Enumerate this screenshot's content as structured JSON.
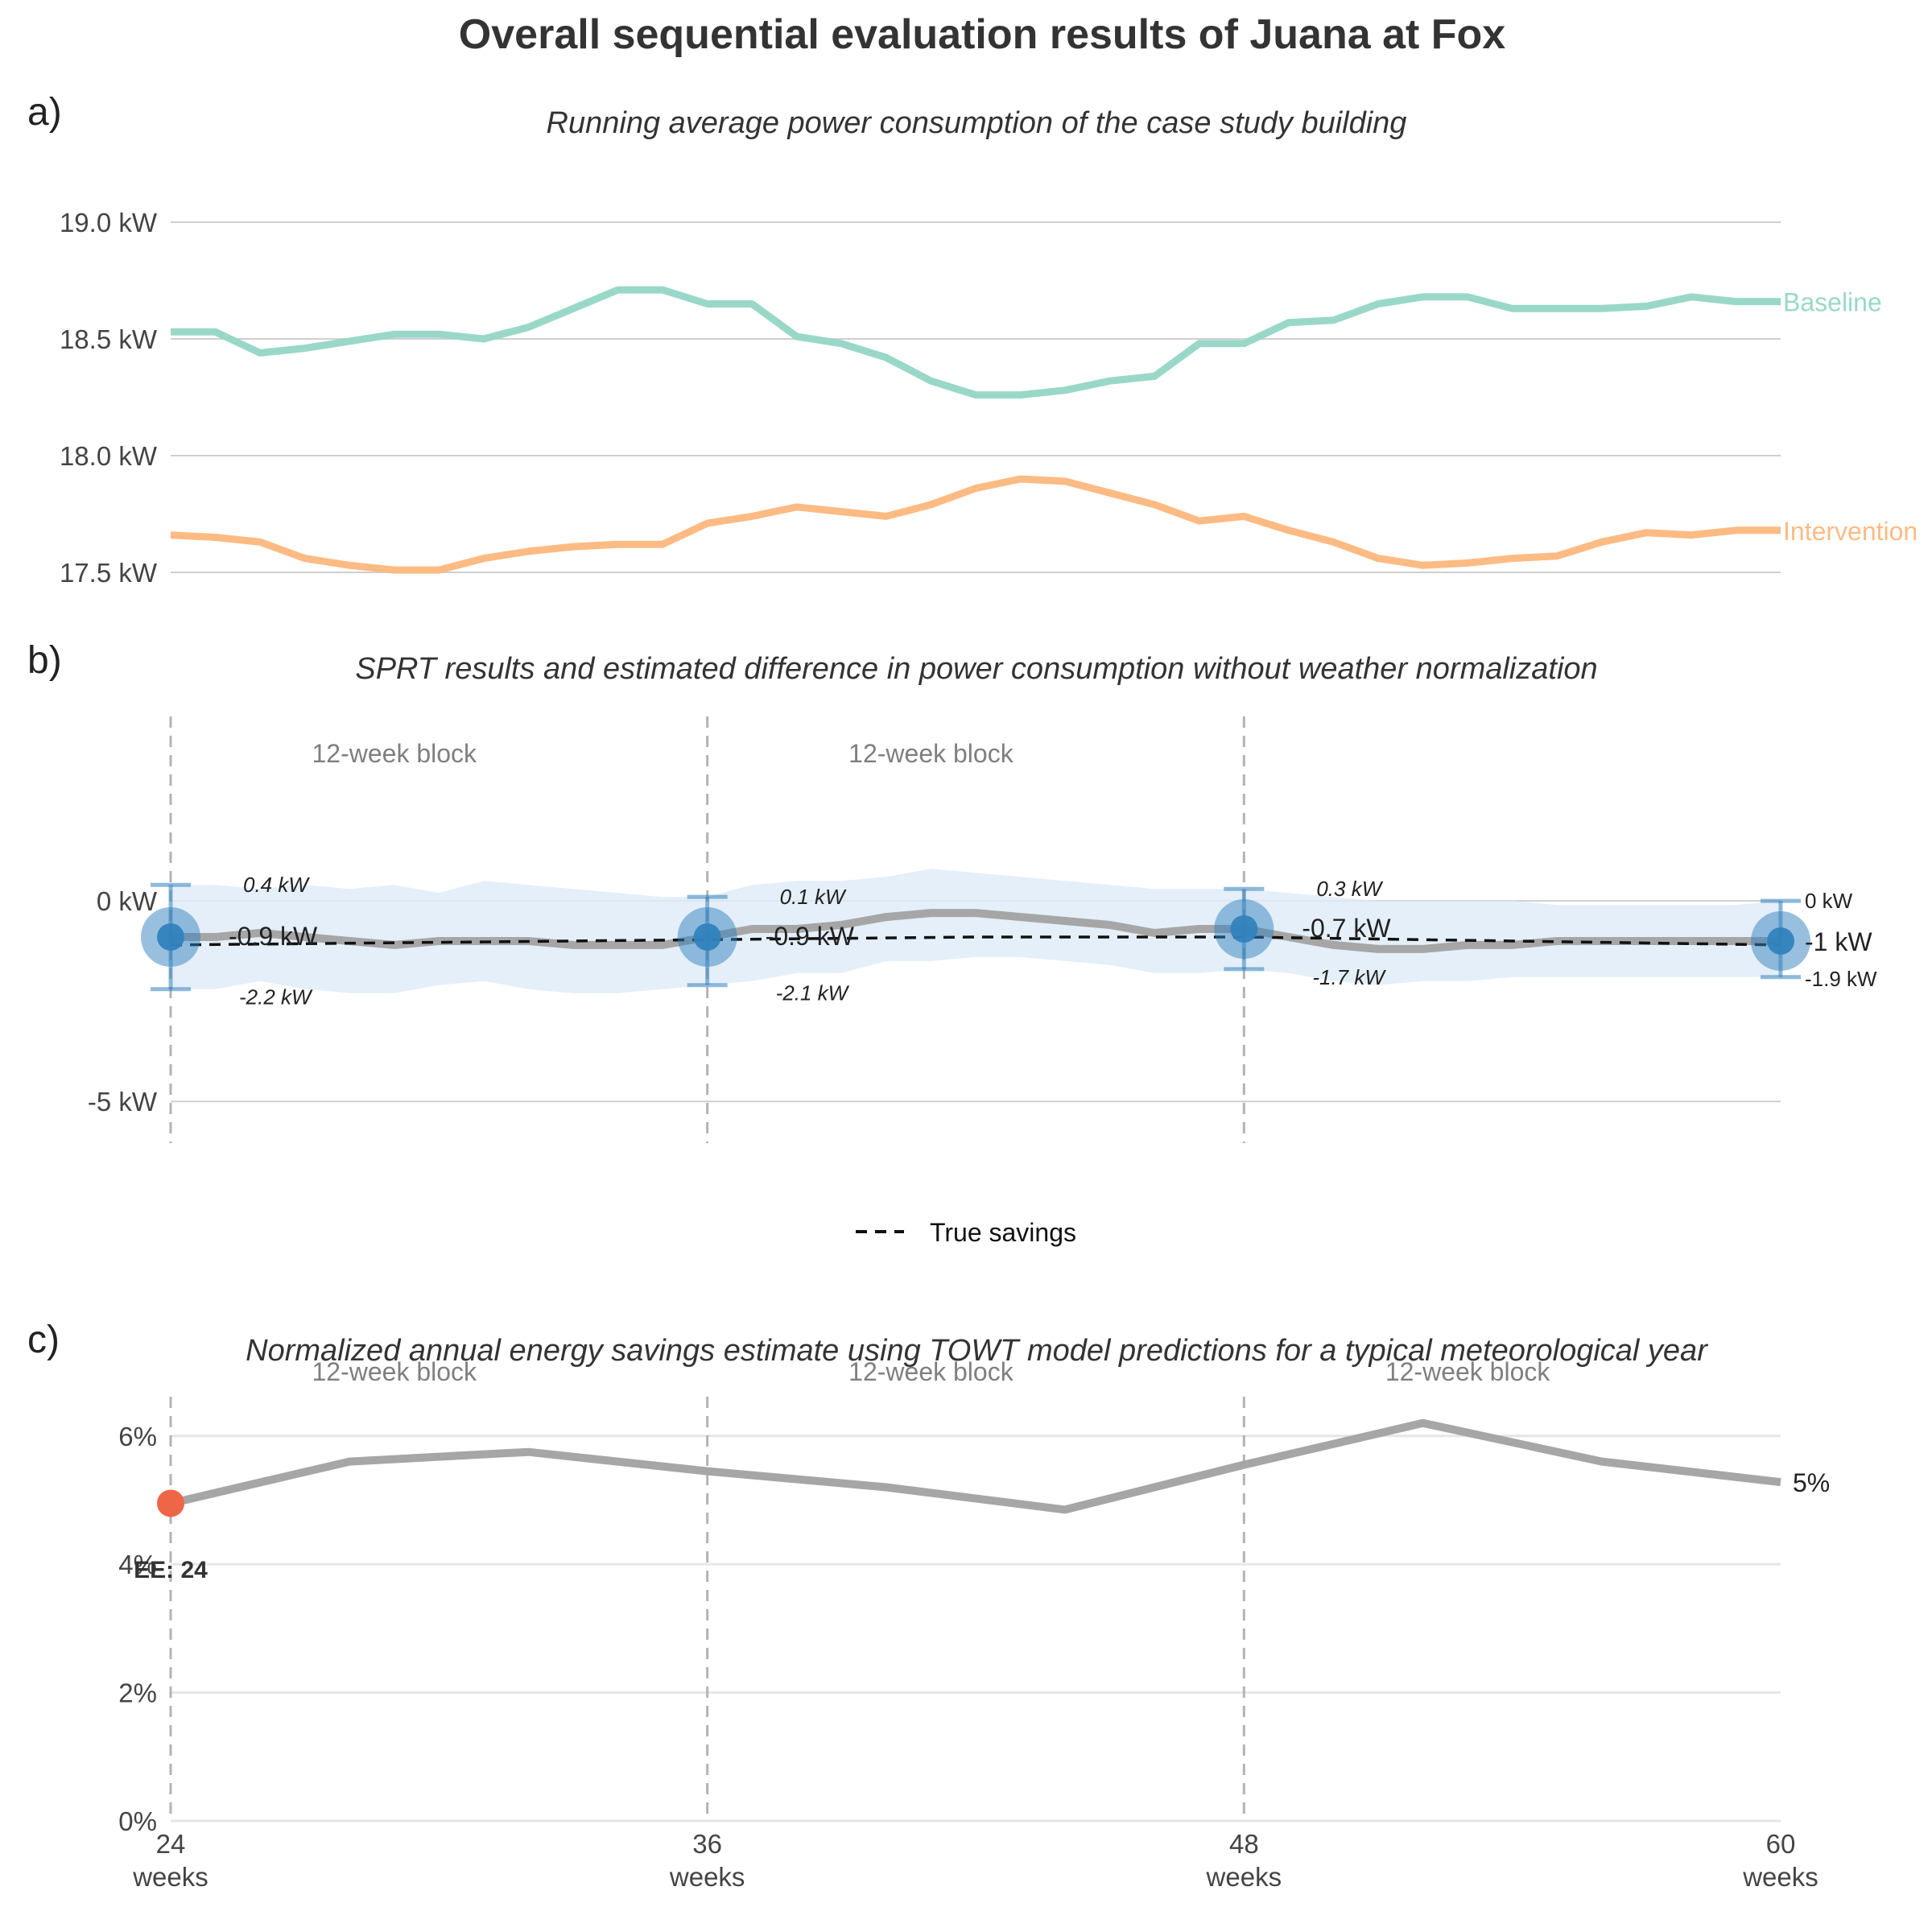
{
  "figure": {
    "title": "Overall sequential evaluation results of Juana at Fox"
  },
  "colors": {
    "baseline": "#99d8c9",
    "intervention": "#fdbb84",
    "savings_line": "#a6a6a6",
    "point": "#3182bd",
    "band": "#deebf7",
    "ee_point": "#ef6548"
  },
  "chart_data": [
    {
      "panel": "a)",
      "type": "line",
      "title": "Running average power consumption of the case study building",
      "xlabel": "",
      "ylabel": "",
      "xlim": [
        24,
        60
      ],
      "ylim": [
        17.4,
        19.2
      ],
      "yticks": [
        17.5,
        18.0,
        18.5,
        19.0
      ],
      "ytick_labels": [
        "17.5 kW",
        "18.0 kW",
        "18.5 kW",
        "19.0 kW"
      ],
      "grid": true,
      "x": [
        24,
        25,
        26,
        27,
        28,
        29,
        30,
        31,
        32,
        33,
        34,
        35,
        36,
        37,
        38,
        39,
        40,
        41,
        42,
        43,
        44,
        45,
        46,
        47,
        48,
        49,
        50,
        51,
        52,
        53,
        54,
        55,
        56,
        57,
        58,
        59,
        60
      ],
      "series": [
        {
          "name": "Baseline",
          "values": [
            18.53,
            18.53,
            18.44,
            18.46,
            18.49,
            18.52,
            18.52,
            18.5,
            18.55,
            18.63,
            18.71,
            18.71,
            18.65,
            18.65,
            18.51,
            18.48,
            18.42,
            18.32,
            18.26,
            18.26,
            18.28,
            18.32,
            18.34,
            18.48,
            18.48,
            18.57,
            18.58,
            18.65,
            18.68,
            18.68,
            18.63,
            18.63,
            18.63,
            18.64,
            18.68,
            18.66,
            18.66
          ]
        },
        {
          "name": "Intervention",
          "values": [
            17.66,
            17.65,
            17.63,
            17.56,
            17.53,
            17.51,
            17.51,
            17.56,
            17.59,
            17.61,
            17.62,
            17.62,
            17.71,
            17.74,
            17.78,
            17.76,
            17.74,
            17.79,
            17.86,
            17.9,
            17.89,
            17.84,
            17.79,
            17.72,
            17.74,
            17.68,
            17.63,
            17.56,
            17.53,
            17.54,
            17.56,
            17.57,
            17.63,
            17.67,
            17.66,
            17.68,
            17.68
          ]
        }
      ]
    },
    {
      "panel": "b)",
      "type": "line",
      "title": "SPRT results and estimated difference in power consumption without weather normalization",
      "xlabel": "",
      "ylabel": "",
      "xlim": [
        24,
        60
      ],
      "ylim": [
        -6,
        4.5
      ],
      "yticks": [
        0,
        -5
      ],
      "ytick_labels": [
        "0 kW",
        "-5 kW"
      ],
      "grid": true,
      "vlines": [
        24,
        36,
        48
      ],
      "block_labels": [
        {
          "x": 29,
          "text": "12-week block"
        },
        {
          "x": 41,
          "text": "12-week block"
        }
      ],
      "legend": {
        "label": "True savings",
        "placement": "bottom-center"
      },
      "x": [
        24,
        25,
        26,
        27,
        28,
        29,
        30,
        31,
        32,
        33,
        34,
        35,
        36,
        37,
        38,
        39,
        40,
        41,
        42,
        43,
        44,
        45,
        46,
        47,
        48,
        49,
        50,
        51,
        52,
        53,
        54,
        55,
        56,
        57,
        58,
        59,
        60
      ],
      "estimate": [
        -0.9,
        -0.9,
        -0.8,
        -0.9,
        -1.0,
        -1.1,
        -1.0,
        -1.0,
        -1.0,
        -1.1,
        -1.1,
        -1.1,
        -0.9,
        -0.7,
        -0.7,
        -0.6,
        -0.4,
        -0.3,
        -0.3,
        -0.4,
        -0.5,
        -0.6,
        -0.8,
        -0.7,
        -0.7,
        -0.9,
        -1.1,
        -1.2,
        -1.2,
        -1.1,
        -1.1,
        -1.0,
        -1.0,
        -1.0,
        -1.0,
        -1.0,
        -1.0
      ],
      "band_upper": [
        0.4,
        0.4,
        0.3,
        0.4,
        0.3,
        0.4,
        0.2,
        0.5,
        0.4,
        0.3,
        0.2,
        0.1,
        0.1,
        0.4,
        0.5,
        0.5,
        0.6,
        0.8,
        0.7,
        0.6,
        0.5,
        0.4,
        0.3,
        0.3,
        0.3,
        0.2,
        0.1,
        0.0,
        0.0,
        0.0,
        0.0,
        -0.1,
        -0.1,
        -0.1,
        -0.1,
        -0.1,
        0.0
      ],
      "band_lower": [
        -2.2,
        -2.2,
        -2.0,
        -2.2,
        -2.3,
        -2.3,
        -2.1,
        -2.0,
        -2.2,
        -2.3,
        -2.3,
        -2.2,
        -2.1,
        -2.0,
        -1.8,
        -1.8,
        -1.5,
        -1.5,
        -1.4,
        -1.4,
        -1.5,
        -1.6,
        -1.8,
        -1.8,
        -1.7,
        -1.8,
        -2.0,
        -2.1,
        -2.0,
        -2.0,
        -1.9,
        -1.9,
        -1.9,
        -1.9,
        -1.9,
        -1.9,
        -1.9
      ],
      "true_savings": {
        "x": [
          24,
          42,
          48,
          60
        ],
        "values": [
          -1.1,
          -0.9,
          -0.9,
          -1.1
        ]
      },
      "sprt_points": [
        {
          "x": 24,
          "estimate": -0.9,
          "upper": 0.4,
          "lower": -2.2,
          "estimate_label": "-0.9 kW",
          "upper_label": "0.4 kW",
          "lower_label": "-2.2 kW"
        },
        {
          "x": 36,
          "estimate": -0.9,
          "upper": 0.1,
          "lower": -2.1,
          "estimate_label": "-0.9 kW",
          "upper_label": "0.1 kW",
          "lower_label": "-2.1 kW"
        },
        {
          "x": 48,
          "estimate": -0.7,
          "upper": 0.3,
          "lower": -1.7,
          "estimate_label": "-0.7 kW",
          "upper_label": "0.3 kW",
          "lower_label": "-1.7 kW"
        },
        {
          "x": 60,
          "estimate": -1.0,
          "upper": 0.0,
          "lower": -1.9,
          "estimate_label": "-1 kW",
          "upper_label": "0 kW",
          "lower_label": "-1.9 kW"
        }
      ]
    },
    {
      "panel": "c)",
      "type": "line",
      "title": "Normalized annual energy savings estimate using TOWT model predictions for a typical meteorological year",
      "xlabel": "",
      "ylabel": "",
      "xlim": [
        24,
        60
      ],
      "ylim": [
        0,
        6.8
      ],
      "yticks": [
        0,
        2,
        4,
        6
      ],
      "ytick_labels": [
        "0%",
        "2%",
        "4%",
        "6%"
      ],
      "xticks": [
        24,
        36,
        48,
        60
      ],
      "xtick_labels": [
        [
          "24",
          "weeks"
        ],
        [
          "36",
          "weeks"
        ],
        [
          "48",
          "weeks"
        ],
        [
          "60",
          "weeks"
        ]
      ],
      "grid": true,
      "vlines": [
        24,
        36,
        48
      ],
      "block_labels": [
        {
          "x": 29,
          "text": "12-week block"
        },
        {
          "x": 41,
          "text": "12-week block"
        },
        {
          "x": 53,
          "text": "12-week block"
        }
      ],
      "x": [
        24,
        28,
        32,
        36,
        40,
        44,
        48,
        52,
        56,
        60
      ],
      "values": [
        4.95,
        5.6,
        5.75,
        5.45,
        5.2,
        4.85,
        5.55,
        6.2,
        5.6,
        5.28
      ],
      "end_label": "5%",
      "early_exit": {
        "x": 24,
        "value": 4.95,
        "label": "EE: 24"
      }
    }
  ]
}
